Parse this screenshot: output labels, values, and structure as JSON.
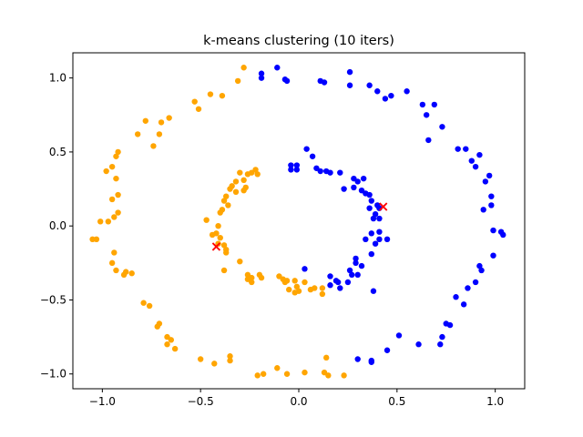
{
  "chart_data": {
    "type": "scatter",
    "title": "k-means clustering (10 iters)",
    "xlabel": "",
    "ylabel": "",
    "xlim": [
      -1.15,
      1.15
    ],
    "ylim": [
      -1.1,
      1.17
    ],
    "x_ticks": [
      {
        "value": -1.0,
        "label": "−1.0"
      },
      {
        "value": -0.5,
        "label": "−0.5"
      },
      {
        "value": 0.0,
        "label": "0.0"
      },
      {
        "value": 0.5,
        "label": "0.5"
      },
      {
        "value": 1.0,
        "label": "1.0"
      }
    ],
    "y_ticks": [
      {
        "value": -1.0,
        "label": "−1.0"
      },
      {
        "value": -0.5,
        "label": "−0.5"
      },
      {
        "value": 0.0,
        "label": "0.0"
      },
      {
        "value": 0.5,
        "label": "0.5"
      },
      {
        "value": 1.0,
        "label": "1.0"
      }
    ],
    "grid": false,
    "series": [
      {
        "color": "#ffa500",
        "marker": "circle",
        "points": [
          [
            -0.28,
            1.07
          ],
          [
            -0.31,
            0.98
          ],
          [
            -0.39,
            0.88
          ],
          [
            -0.45,
            0.89
          ],
          [
            -0.51,
            0.79
          ],
          [
            -0.53,
            0.84
          ],
          [
            -0.66,
            0.73
          ],
          [
            -0.7,
            0.7
          ],
          [
            -0.78,
            0.71
          ],
          [
            -0.71,
            0.62
          ],
          [
            -0.82,
            0.62
          ],
          [
            -0.74,
            0.54
          ],
          [
            -0.92,
            0.5
          ],
          [
            -0.93,
            0.47
          ],
          [
            -0.95,
            0.4
          ],
          [
            -0.98,
            0.37
          ],
          [
            -0.93,
            0.32
          ],
          [
            -0.92,
            0.21
          ],
          [
            -0.95,
            0.18
          ],
          [
            -0.92,
            0.09
          ],
          [
            -0.94,
            0.06
          ],
          [
            -0.97,
            0.03
          ],
          [
            -1.01,
            0.03
          ],
          [
            -1.05,
            -0.09
          ],
          [
            -1.03,
            -0.09
          ],
          [
            -0.94,
            -0.18
          ],
          [
            -0.95,
            -0.25
          ],
          [
            -0.93,
            -0.3
          ],
          [
            -0.88,
            -0.31
          ],
          [
            -0.85,
            -0.32
          ],
          [
            -0.89,
            -0.33
          ],
          [
            -0.79,
            -0.52
          ],
          [
            -0.76,
            -0.54
          ],
          [
            -0.71,
            -0.66
          ],
          [
            -0.72,
            -0.68
          ],
          [
            -0.67,
            -0.75
          ],
          [
            -0.65,
            -0.77
          ],
          [
            -0.67,
            -0.8
          ],
          [
            -0.63,
            -0.83
          ],
          [
            -0.5,
            -0.9
          ],
          [
            -0.43,
            -0.93
          ],
          [
            -0.35,
            -0.88
          ],
          [
            -0.35,
            -0.91
          ],
          [
            -0.21,
            -1.01
          ],
          [
            -0.18,
            -1.0
          ],
          [
            -0.11,
            -0.96
          ],
          [
            -0.06,
            -1.0
          ],
          [
            0.03,
            -0.99
          ],
          [
            0.13,
            -0.99
          ],
          [
            0.15,
            -1.01
          ],
          [
            0.23,
            -1.01
          ],
          [
            0.14,
            -0.89
          ],
          [
            -0.24,
            0.36
          ],
          [
            -0.21,
            0.35
          ],
          [
            -0.22,
            0.38
          ],
          [
            -0.26,
            0.35
          ],
          [
            -0.28,
            0.31
          ],
          [
            -0.3,
            0.36
          ],
          [
            -0.32,
            0.3
          ],
          [
            -0.34,
            0.27
          ],
          [
            -0.27,
            0.26
          ],
          [
            -0.28,
            0.24
          ],
          [
            -0.35,
            0.25
          ],
          [
            -0.32,
            0.23
          ],
          [
            -0.38,
            0.17
          ],
          [
            -0.37,
            0.2
          ],
          [
            -0.36,
            0.14
          ],
          [
            -0.39,
            0.11
          ],
          [
            -0.4,
            0.09
          ],
          [
            -0.47,
            0.04
          ],
          [
            -0.41,
            0.0
          ],
          [
            -0.42,
            -0.05
          ],
          [
            -0.4,
            -0.08
          ],
          [
            -0.44,
            -0.06
          ],
          [
            -0.41,
            -0.12
          ],
          [
            -0.38,
            -0.13
          ],
          [
            -0.37,
            -0.16
          ],
          [
            -0.37,
            -0.18
          ],
          [
            -0.3,
            -0.24
          ],
          [
            -0.38,
            -0.3
          ],
          [
            -0.26,
            -0.33
          ],
          [
            -0.24,
            -0.35
          ],
          [
            -0.26,
            -0.36
          ],
          [
            -0.24,
            -0.38
          ],
          [
            -0.2,
            -0.33
          ],
          [
            -0.19,
            -0.35
          ],
          [
            -0.1,
            -0.34
          ],
          [
            -0.08,
            -0.36
          ],
          [
            -0.07,
            -0.38
          ],
          [
            -0.06,
            -0.37
          ],
          [
            -0.02,
            -0.37
          ],
          [
            0.03,
            -0.38
          ],
          [
            -0.01,
            -0.41
          ],
          [
            -0.05,
            -0.43
          ],
          [
            0.06,
            -0.43
          ],
          [
            0.08,
            -0.42
          ],
          [
            0.12,
            -0.42
          ],
          [
            0.12,
            -0.46
          ],
          [
            0.0,
            -0.44
          ],
          [
            -0.02,
            -0.45
          ]
        ]
      },
      {
        "color": "#0000ff",
        "marker": "circle",
        "points": [
          [
            -0.19,
            1.03
          ],
          [
            -0.19,
            1.0
          ],
          [
            -0.11,
            1.07
          ],
          [
            -0.07,
            0.99
          ],
          [
            -0.06,
            0.98
          ],
          [
            0.11,
            0.98
          ],
          [
            0.13,
            0.97
          ],
          [
            0.26,
            1.04
          ],
          [
            0.26,
            0.95
          ],
          [
            0.36,
            0.95
          ],
          [
            0.4,
            0.91
          ],
          [
            0.44,
            0.86
          ],
          [
            0.47,
            0.88
          ],
          [
            0.55,
            0.91
          ],
          [
            0.63,
            0.82
          ],
          [
            0.69,
            0.82
          ],
          [
            0.65,
            0.75
          ],
          [
            0.73,
            0.67
          ],
          [
            0.66,
            0.58
          ],
          [
            0.81,
            0.52
          ],
          [
            0.85,
            0.52
          ],
          [
            0.92,
            0.48
          ],
          [
            0.88,
            0.44
          ],
          [
            0.9,
            0.4
          ],
          [
            0.97,
            0.34
          ],
          [
            0.95,
            0.3
          ],
          [
            0.98,
            0.2
          ],
          [
            0.98,
            0.14
          ],
          [
            0.94,
            0.11
          ],
          [
            0.99,
            -0.03
          ],
          [
            1.03,
            -0.04
          ],
          [
            1.04,
            -0.06
          ],
          [
            0.99,
            -0.2
          ],
          [
            0.92,
            -0.27
          ],
          [
            0.93,
            -0.3
          ],
          [
            0.9,
            -0.38
          ],
          [
            0.86,
            -0.42
          ],
          [
            0.8,
            -0.48
          ],
          [
            0.84,
            -0.53
          ],
          [
            0.75,
            -0.66
          ],
          [
            0.77,
            -0.67
          ],
          [
            0.73,
            -0.75
          ],
          [
            0.72,
            -0.8
          ],
          [
            0.61,
            -0.8
          ],
          [
            0.51,
            -0.74
          ],
          [
            0.45,
            -0.84
          ],
          [
            0.37,
            -0.91
          ],
          [
            0.37,
            -0.92
          ],
          [
            0.3,
            -0.9
          ],
          [
            0.04,
            0.52
          ],
          [
            0.07,
            0.47
          ],
          [
            -0.01,
            0.41
          ],
          [
            -0.04,
            0.41
          ],
          [
            -0.04,
            0.38
          ],
          [
            -0.01,
            0.38
          ],
          [
            0.09,
            0.39
          ],
          [
            0.11,
            0.37
          ],
          [
            0.14,
            0.37
          ],
          [
            0.16,
            0.36
          ],
          [
            0.21,
            0.36
          ],
          [
            0.28,
            0.32
          ],
          [
            0.3,
            0.3
          ],
          [
            0.33,
            0.32
          ],
          [
            0.28,
            0.26
          ],
          [
            0.23,
            0.25
          ],
          [
            0.32,
            0.24
          ],
          [
            0.34,
            0.22
          ],
          [
            0.36,
            0.21
          ],
          [
            0.37,
            0.17
          ],
          [
            0.4,
            0.14
          ],
          [
            0.41,
            0.12
          ],
          [
            0.36,
            0.12
          ],
          [
            0.39,
            0.08
          ],
          [
            0.41,
            0.05
          ],
          [
            0.38,
            0.05
          ],
          [
            0.41,
            -0.04
          ],
          [
            0.37,
            -0.05
          ],
          [
            0.41,
            -0.09
          ],
          [
            0.45,
            -0.09
          ],
          [
            0.39,
            -0.12
          ],
          [
            0.34,
            -0.09
          ],
          [
            0.37,
            -0.19
          ],
          [
            0.29,
            -0.22
          ],
          [
            0.29,
            -0.25
          ],
          [
            0.32,
            -0.27
          ],
          [
            0.26,
            -0.3
          ],
          [
            0.27,
            -0.33
          ],
          [
            0.25,
            -0.38
          ],
          [
            0.16,
            -0.34
          ],
          [
            0.19,
            -0.37
          ],
          [
            0.21,
            -0.42
          ],
          [
            0.2,
            -0.38
          ],
          [
            0.16,
            -0.4
          ],
          [
            0.03,
            -0.29
          ],
          [
            0.38,
            -0.44
          ],
          [
            0.3,
            -0.33
          ]
        ]
      }
    ],
    "centroids": {
      "color": "#ff0000",
      "marker": "x",
      "points": [
        [
          -0.42,
          -0.14
        ],
        [
          0.43,
          0.13
        ]
      ]
    }
  }
}
